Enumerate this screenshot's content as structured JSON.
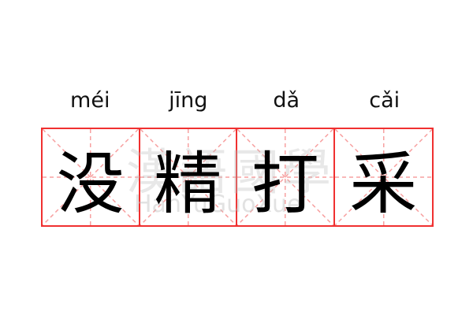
{
  "characters": [
    {
      "pinyin": "méi",
      "hanzi": "没"
    },
    {
      "pinyin": "jīng",
      "hanzi": "精"
    },
    {
      "pinyin": "dǎ",
      "hanzi": "打"
    },
    {
      "pinyin": "cǎi",
      "hanzi": "采"
    }
  ],
  "watermark": {
    "chinese": "漢語國學",
    "latin": "HanYuGuoXue"
  },
  "colors": {
    "grid_border": "#f03030",
    "guide_lines": "#f7a0a0"
  }
}
